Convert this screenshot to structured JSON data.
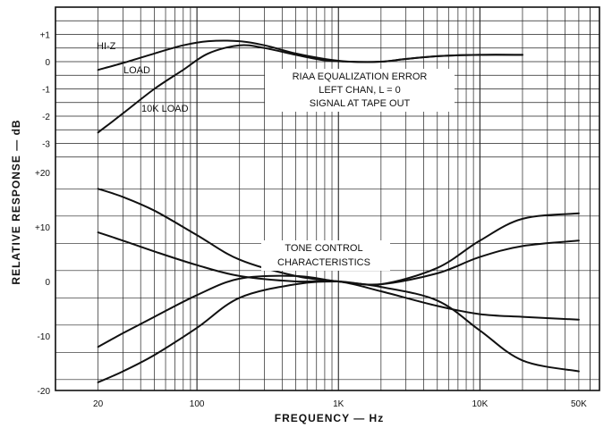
{
  "chart_data": [
    {
      "type": "line",
      "panel": "top",
      "xlabel": "FREQUENCY — Hz",
      "ylabel": "RELATIVE RESPONSE — dB",
      "x_scale": "log",
      "xlim": [
        10,
        70000
      ],
      "ylim": [
        -4,
        1.5
      ],
      "ytick_labels": [
        "+1",
        "0",
        "-1",
        "-2",
        "-3"
      ],
      "yticks": [
        1,
        0,
        -1,
        -2,
        -3
      ],
      "grid": true,
      "annotations": [
        "RIAA EQUALIZATION ERROR",
        "LEFT CHAN, L = 0",
        "SIGNAL AT TAPE OUT"
      ],
      "series": [
        {
          "name": "HI-Z LOAD",
          "x": [
            20,
            30,
            50,
            80,
            120,
            200,
            300,
            500,
            800,
            1200,
            2000,
            3000,
            5000,
            10000,
            20000
          ],
          "y": [
            -0.3,
            -0.05,
            0.3,
            0.6,
            0.75,
            0.75,
            0.6,
            0.3,
            0.1,
            0.0,
            0.0,
            0.1,
            0.2,
            0.25,
            0.25
          ]
        },
        {
          "name": "10K LOAD",
          "x": [
            20,
            30,
            50,
            80,
            120,
            200,
            300,
            500,
            800,
            1200,
            2000,
            3000,
            5000,
            10000,
            20000
          ],
          "y": [
            -2.6,
            -1.9,
            -1.0,
            -0.3,
            0.3,
            0.6,
            0.5,
            0.25,
            0.05,
            0.0,
            0.0,
            0.1,
            0.2,
            0.25,
            0.25
          ]
        }
      ]
    },
    {
      "type": "line",
      "panel": "bottom",
      "title": "TONE CONTROL CHARACTERISTICS",
      "x_scale": "log",
      "xlim": [
        10,
        70000
      ],
      "ylim": [
        -20,
        22
      ],
      "ytick_labels": [
        "+20",
        "+10",
        "0",
        "-10",
        "-20"
      ],
      "yticks": [
        20,
        10,
        0,
        -10,
        -20
      ],
      "grid": true,
      "series": [
        {
          "x": [
            20,
            30,
            50,
            100,
            200,
            500,
            1000,
            2000,
            5000,
            10000,
            20000,
            50000
          ],
          "y": [
            17,
            15.5,
            13,
            8.5,
            4,
            1,
            0,
            -1,
            -3.5,
            -9,
            -14.5,
            -16.5
          ]
        },
        {
          "x": [
            20,
            30,
            50,
            100,
            200,
            500,
            1000,
            2000,
            5000,
            10000,
            20000,
            50000
          ],
          "y": [
            9,
            7.5,
            5.5,
            3,
            1,
            0,
            0,
            -1.8,
            -4.5,
            -6,
            -6.5,
            -7
          ]
        },
        {
          "x": [
            20,
            30,
            50,
            100,
            200,
            500,
            1000,
            2000,
            5000,
            10000,
            20000,
            50000
          ],
          "y": [
            -12,
            -9.5,
            -6.5,
            -2.5,
            0.5,
            1,
            0,
            -0.5,
            1.5,
            4.5,
            6.5,
            7.5
          ]
        },
        {
          "x": [
            20,
            30,
            50,
            100,
            200,
            500,
            1000,
            2000,
            5000,
            10000,
            20000,
            50000
          ],
          "y": [
            -18.5,
            -16.5,
            -13.5,
            -8.5,
            -3,
            -0.5,
            0,
            -0.5,
            2.5,
            7.5,
            11.5,
            12.5
          ]
        }
      ]
    }
  ],
  "labels": {
    "hiz_line1": "HI-Z",
    "hiz_line2": "LOAD",
    "tenk_load": "10K LOAD",
    "riaa_line1": "RIAA EQUALIZATION ERROR",
    "riaa_line2": "LEFT CHAN, L = 0",
    "riaa_line3": "SIGNAL AT TAPE OUT",
    "tone_line1": "TONE CONTROL",
    "tone_line2": "CHARACTERISTICS"
  },
  "x_tick_labels": [
    {
      "value": 20,
      "label": "20"
    },
    {
      "value": 100,
      "label": "100"
    },
    {
      "value": 1000,
      "label": "1K"
    },
    {
      "value": 10000,
      "label": "10K"
    },
    {
      "value": 50000,
      "label": "50K"
    }
  ],
  "xlabel": "FREQUENCY — Hz",
  "ylabel": "RELATIVE RESPONSE — dB"
}
